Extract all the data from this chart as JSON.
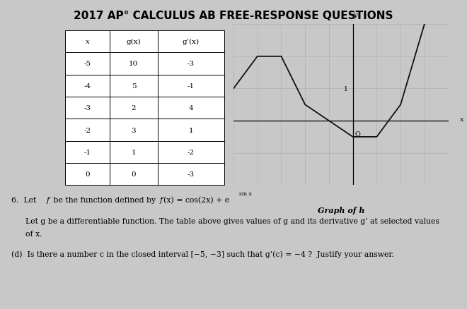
{
  "title": "2017 AP° CALCULUS AB FREE-RESPONSE QUESTIONS",
  "title_fontsize": 11,
  "bg_color": "#c8c8c8",
  "table_data": {
    "headers": [
      "x",
      "g(x)",
      "g’(x)"
    ],
    "rows": [
      [
        "-5",
        "10",
        "-3"
      ],
      [
        "-4",
        "5",
        "-1"
      ],
      [
        "-3",
        "2",
        "4"
      ],
      [
        "-2",
        "3",
        "1"
      ],
      [
        "-1",
        "1",
        "-2"
      ],
      [
        "0",
        "0",
        "-3"
      ]
    ]
  },
  "graph": {
    "x_points": [
      -5,
      -4,
      -3,
      -2,
      -1,
      0,
      1,
      2,
      3
    ],
    "y_points": [
      1.0,
      2.0,
      2.0,
      0.5,
      0.0,
      -0.5,
      -0.5,
      0.5,
      3.0
    ],
    "xlim": [
      -5,
      4
    ],
    "ylim": [
      -2,
      3
    ],
    "grid_color": "#b0b0b0",
    "line_color": "#111111",
    "label": "Graph of h"
  }
}
